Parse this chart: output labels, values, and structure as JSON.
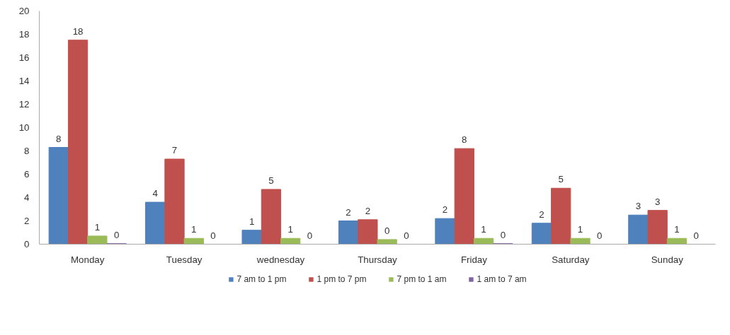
{
  "chart_data": {
    "type": "bar",
    "categories": [
      "Monday",
      "Tuesday",
      "wednesday",
      "Thursday",
      "Friday",
      "Saturday",
      "Sunday"
    ],
    "series": [
      {
        "name": "7 am to 1 pm",
        "color": "#4f81bd",
        "values": [
          8.3,
          3.6,
          1.2,
          2.0,
          2.2,
          1.8,
          2.5
        ],
        "value_labels": [
          "8",
          "4",
          "1",
          "2",
          "2",
          "2",
          "3"
        ]
      },
      {
        "name": "1 pm to 7 pm",
        "color": "#c0504d",
        "values": [
          17.5,
          7.3,
          4.7,
          2.1,
          8.2,
          4.8,
          2.9
        ],
        "value_labels": [
          "18",
          "7",
          "5",
          "2",
          "8",
          "5",
          "3"
        ]
      },
      {
        "name": "7 pm to 1 am",
        "color": "#9bbb59",
        "values": [
          0.7,
          0.5,
          0.5,
          0.4,
          0.5,
          0.5,
          0.5
        ],
        "value_labels": [
          "1",
          "1",
          "1",
          "0",
          "1",
          "1",
          "1"
        ]
      },
      {
        "name": "1 am to 7 am",
        "color": "#8064a2",
        "values": [
          0.05,
          0,
          0,
          0,
          0.05,
          0,
          0
        ],
        "value_labels": [
          "0",
          "0",
          "0",
          "0",
          "0",
          "0",
          "0"
        ]
      }
    ],
    "ylim": [
      0,
      20
    ],
    "yticks": [
      0,
      2,
      4,
      6,
      8,
      10,
      12,
      14,
      16,
      18,
      20
    ],
    "grid": false,
    "legend": "bottom"
  }
}
